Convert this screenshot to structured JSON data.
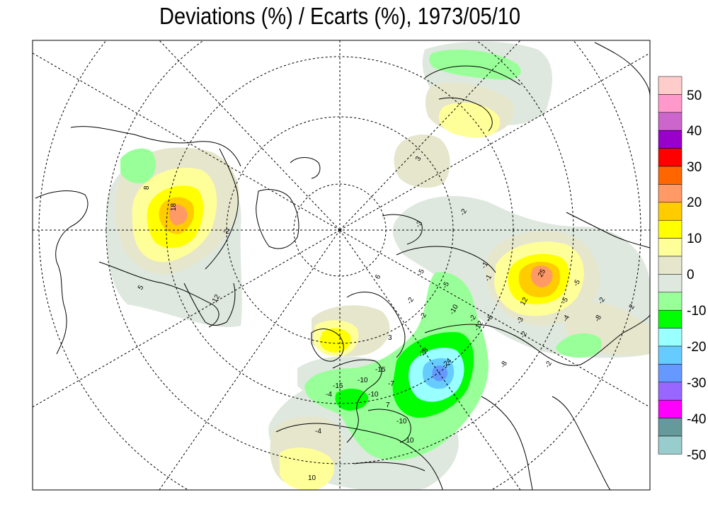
{
  "title": "Deviations (%) / Ecarts (%), 1973/05/10",
  "legend": {
    "labels": [
      "50",
      "40",
      "30",
      "20",
      "10",
      "0",
      "-10",
      "-20",
      "-30",
      "-40",
      "-50"
    ],
    "colors": [
      "#ffcccc",
      "#ff99cc",
      "#cc66cc",
      "#9900cc",
      "#ff0000",
      "#ff6600",
      "#ff9966",
      "#ffcc00",
      "#ffff00",
      "#ffff99",
      "#e6e6cc",
      "#dfe8df",
      "#99ff99",
      "#00ff00",
      "#99ffff",
      "#66ccff",
      "#6699ff",
      "#9966ff",
      "#ff00ff",
      "#669999",
      "#99cccc"
    ]
  },
  "contour_labels": [
    "8",
    "18",
    "5",
    "12",
    "-2",
    "3",
    "-3",
    "-2",
    "-1",
    "-5",
    "6",
    "-10",
    "-2",
    "-2",
    "-2",
    "-6",
    "-5",
    "-10",
    "-4",
    "10",
    "-28",
    "-24",
    "-7",
    "-10",
    "-4",
    "-10",
    "-15",
    "-10",
    "7",
    "12",
    "-5",
    "-15",
    "-2",
    "-2",
    "-3",
    "3",
    "-2",
    "-1",
    "25",
    "-5",
    "-12",
    "-8",
    "-2",
    "-4",
    "-8"
  ]
}
